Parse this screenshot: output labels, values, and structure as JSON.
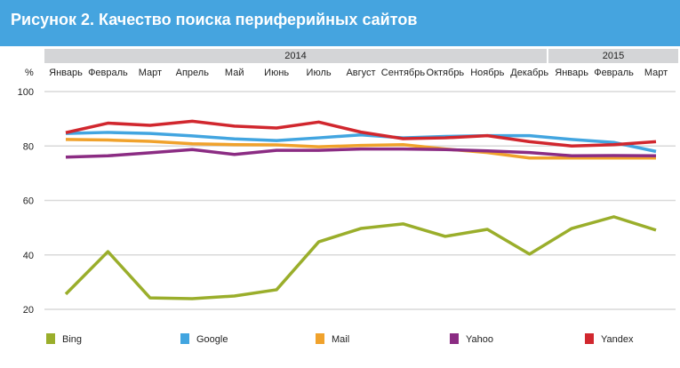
{
  "chart_data": {
    "type": "line",
    "title": "Рисунок 2. Качество поиска периферийных сайтов",
    "ylabel": "%",
    "ylim": [
      20,
      100
    ],
    "yticks": [
      100,
      80,
      60,
      40,
      20
    ],
    "grid": true,
    "years": [
      {
        "label": "2014",
        "months": 12
      },
      {
        "label": "2015",
        "months": 3
      }
    ],
    "categories": [
      "Январь",
      "Февраль",
      "Март",
      "Апрель",
      "Май",
      "Июнь",
      "Июль",
      "Август",
      "Сентябрь",
      "Октябрь",
      "Ноябрь",
      "Декабрь",
      "Январь",
      "Февраль",
      "Март"
    ],
    "legend_position": "bottom",
    "series": [
      {
        "name": "Bing",
        "color": "#9aae2b",
        "values": [
          25.6,
          41.2,
          24.2,
          23.9,
          24.9,
          27.2,
          44.8,
          49.7,
          51.4,
          46.8,
          49.4,
          40.3,
          49.7,
          54.0,
          49.1
        ]
      },
      {
        "name": "Google",
        "color": "#42a5e0",
        "values": [
          84.6,
          85.0,
          84.6,
          83.7,
          82.6,
          82.0,
          83.0,
          84.1,
          83.0,
          83.5,
          83.8,
          83.8,
          82.4,
          81.3,
          78.0
        ]
      },
      {
        "name": "Mail",
        "color": "#f0a22c",
        "values": [
          82.4,
          82.2,
          81.7,
          80.8,
          80.5,
          80.4,
          79.7,
          80.2,
          80.5,
          78.9,
          77.6,
          75.6,
          75.6,
          75.6,
          75.6
        ]
      },
      {
        "name": "Yahoo",
        "color": "#8b2c83",
        "values": [
          75.9,
          76.4,
          77.5,
          78.7,
          76.9,
          78.4,
          78.4,
          78.9,
          78.9,
          78.7,
          78.2,
          77.6,
          76.4,
          76.5,
          76.4
        ]
      },
      {
        "name": "Yandex",
        "color": "#d1272e",
        "values": [
          84.9,
          88.4,
          87.6,
          89.1,
          87.3,
          86.6,
          88.8,
          85.1,
          82.7,
          83.0,
          83.8,
          81.6,
          80.0,
          80.5,
          81.6
        ]
      }
    ]
  }
}
